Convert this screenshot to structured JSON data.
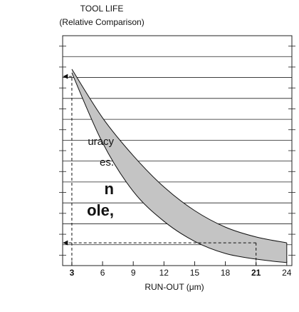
{
  "chart_data": {
    "type": "band",
    "title": "TOOL LIFE",
    "subtitle": "(Relative Comparison)",
    "x_label": "RUN-OUT (μm)",
    "side_text": [
      "uracy",
      "es.",
      "n",
      "ole,"
    ],
    "x": [
      3,
      6,
      9,
      12,
      15,
      18,
      21,
      24
    ],
    "series": [
      {
        "values": [
          9.4,
          7.07,
          5.26,
          3.76,
          2.63,
          1.84,
          1.37,
          1.09
        ]
      },
      {
        "values": [
          9.22,
          5.88,
          3.55,
          2.12,
          1.16,
          0.58,
          0.31,
          0.14
        ]
      }
    ],
    "color": "#c4c4c4",
    "xlim": [
      2.1,
      24.5
    ],
    "xticks": [
      3,
      6,
      9,
      12,
      15,
      18,
      21,
      24
    ],
    "ylim": [
      0,
      11
    ],
    "yticks": [
      0,
      1,
      2,
      3,
      4,
      5,
      6,
      7,
      8,
      9,
      10,
      11
    ],
    "markers": [
      {
        "x": 3,
        "y": 9.05
      },
      {
        "x": 21,
        "y": 1.09
      }
    ],
    "grid": true
  }
}
